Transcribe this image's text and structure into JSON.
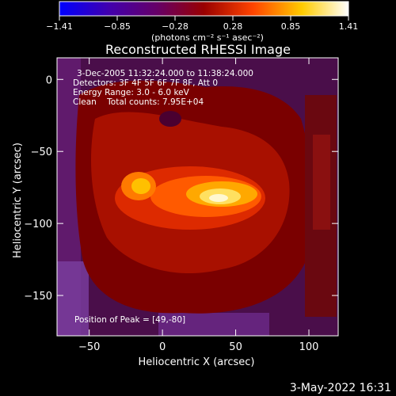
{
  "chart_data": {
    "type": "heatmap",
    "title": "Reconstructed RHESSI Image",
    "xlabel": "Heliocentric X (arcsec)",
    "ylabel": "Heliocentric Y (arcsec)",
    "xlim": [
      -72,
      120
    ],
    "ylim": [
      -178,
      15
    ],
    "xticks": [
      -50,
      0,
      50,
      100
    ],
    "yticks": [
      0,
      -50,
      -100,
      -150
    ],
    "colorbar": {
      "label": "(photons cm⁻² s⁻¹ asec⁻²)",
      "ticks": [
        "-1.41",
        "-0.85",
        "-0.28",
        "0.28",
        "0.85",
        "1.41"
      ],
      "range": [
        -1.41,
        1.41
      ],
      "colors": [
        "#0000ff",
        "#4400aa",
        "#660066",
        "#990000",
        "#ff4400",
        "#ffcc00",
        "#ffffff"
      ]
    },
    "annotations": [
      "3-Dec-2005 11:32:24.000 to 11:38:24.000",
      "Detectors: 3F 4F 5F 6F 7F 8F, Att 0",
      "Energy Range: 3.0 - 6.0 keV",
      "Clean    Total counts: 7.95E+04"
    ],
    "peak_label": "Position of Peak = [49,-80]",
    "peak": [
      49,
      -80
    ]
  },
  "footer": "3-May-2022 16:31"
}
